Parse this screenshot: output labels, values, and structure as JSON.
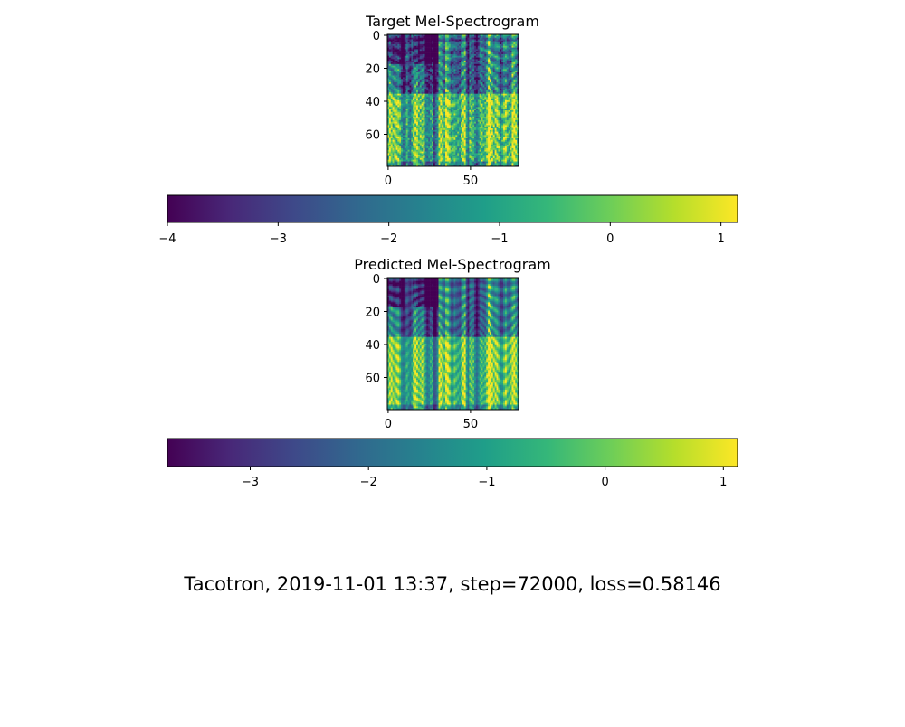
{
  "figure": {
    "caption": "Tacotron, 2019-11-01 13:37, step=72000, loss=0.58146"
  },
  "chart_data": [
    {
      "type": "heatmap",
      "title": "Target Mel-Spectrogram",
      "xlabel": "",
      "ylabel": "",
      "n_frames": 77,
      "n_mels": 80,
      "x_ticks": [
        0,
        50
      ],
      "y_ticks": [
        0,
        20,
        40,
        60
      ],
      "xlim": [
        0,
        76
      ],
      "ylim": [
        79,
        0
      ],
      "colormap": "viridis",
      "colorbar": {
        "orientation": "horizontal",
        "range": [
          -4.0,
          1.15
        ],
        "ticks": [
          -4,
          -3,
          -2,
          -1,
          0,
          1
        ],
        "tick_labels": [
          "−4",
          "−3",
          "−2",
          "−1",
          "0",
          "1"
        ]
      }
    },
    {
      "type": "heatmap",
      "title": "Predicted Mel-Spectrogram",
      "xlabel": "",
      "ylabel": "",
      "n_frames": 77,
      "n_mels": 80,
      "x_ticks": [
        0,
        50
      ],
      "y_ticks": [
        0,
        20,
        40,
        60
      ],
      "xlim": [
        0,
        76
      ],
      "ylim": [
        79,
        0
      ],
      "colormap": "viridis",
      "colorbar": {
        "orientation": "horizontal",
        "range": [
          -3.7,
          1.12
        ],
        "ticks": [
          -3,
          -2,
          -1,
          0,
          1
        ],
        "tick_labels": [
          "−3",
          "−2",
          "−1",
          "0",
          "1"
        ]
      }
    }
  ],
  "colors": {
    "viridis_stops": [
      "#440154",
      "#482878",
      "#3e4989",
      "#31688e",
      "#26828e",
      "#1f9e89",
      "#35b779",
      "#6ece58",
      "#b5de2b",
      "#fde725"
    ]
  }
}
